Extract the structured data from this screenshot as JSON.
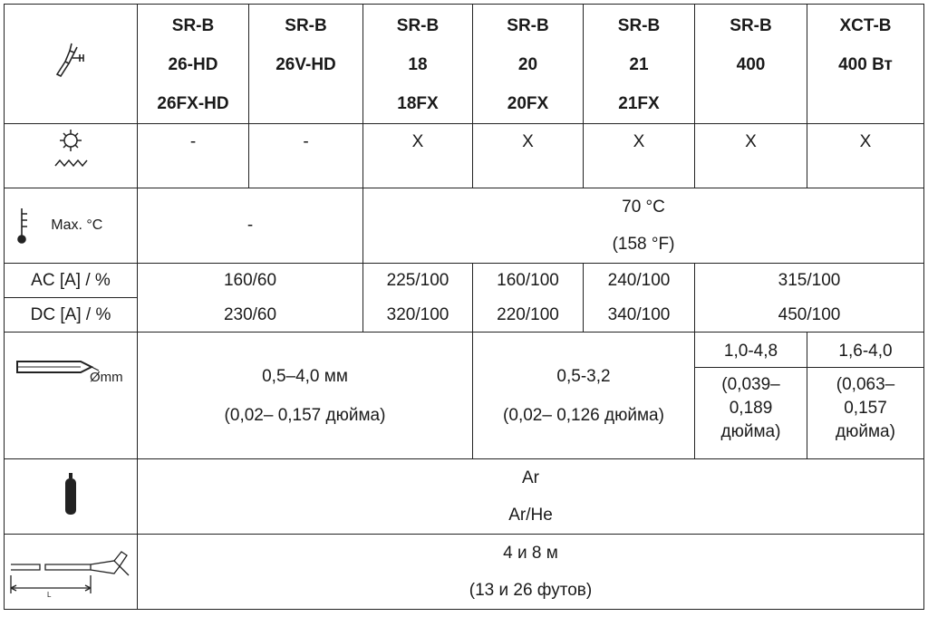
{
  "header": {
    "cols": [
      [
        "SR-B",
        "26-HD",
        "26FX-HD"
      ],
      [
        "SR-B",
        "26V-HD"
      ],
      [
        "SR-B",
        "18",
        "18FX"
      ],
      [
        "SR-B",
        "20",
        "20FX"
      ],
      [
        "SR-B",
        "21",
        "21FX"
      ],
      [
        "SR-B",
        "400"
      ],
      [
        "XCT-B",
        "400 Вт"
      ]
    ]
  },
  "cooling": [
    "-",
    "-",
    "X",
    "X",
    "X",
    "X",
    "X"
  ],
  "temperature": {
    "icon_label": "Max. °C",
    "left": "-",
    "right": [
      "70 °C",
      "(158 °F)"
    ]
  },
  "current": {
    "ac_label": "AC [A] / %",
    "dc_label": "DC [A] / %",
    "groups": [
      {
        "ac": "160/60",
        "dc": "230/60"
      },
      {
        "ac": "225/100",
        "dc": "320/100"
      },
      {
        "ac": "160/100",
        "dc": "220/100"
      },
      {
        "ac": "240/100",
        "dc": "340/100"
      },
      {
        "ac": "315/100",
        "dc": "450/100"
      }
    ]
  },
  "electrode": {
    "icon_label": "Ømm",
    "a": [
      "0,5–4,0 мм",
      "(0,02– 0,157 дюйма)"
    ],
    "b": [
      "0,5-3,2",
      "(0,02– 0,126 дюйма)"
    ],
    "c": [
      "1,0-4,8",
      "(0,039–",
      "0,189",
      "дюйма)"
    ],
    "d": [
      "1,6-4,0",
      "(0,063–",
      "0,157",
      "дюйма)"
    ]
  },
  "gas": [
    "Ar",
    "Ar/He"
  ],
  "length": {
    "icon_label": "L",
    "value": [
      "4 и 8 м",
      "(13 и 26 футов)"
    ]
  },
  "colors": {
    "border": "#222222",
    "text": "#1a1a1a"
  }
}
